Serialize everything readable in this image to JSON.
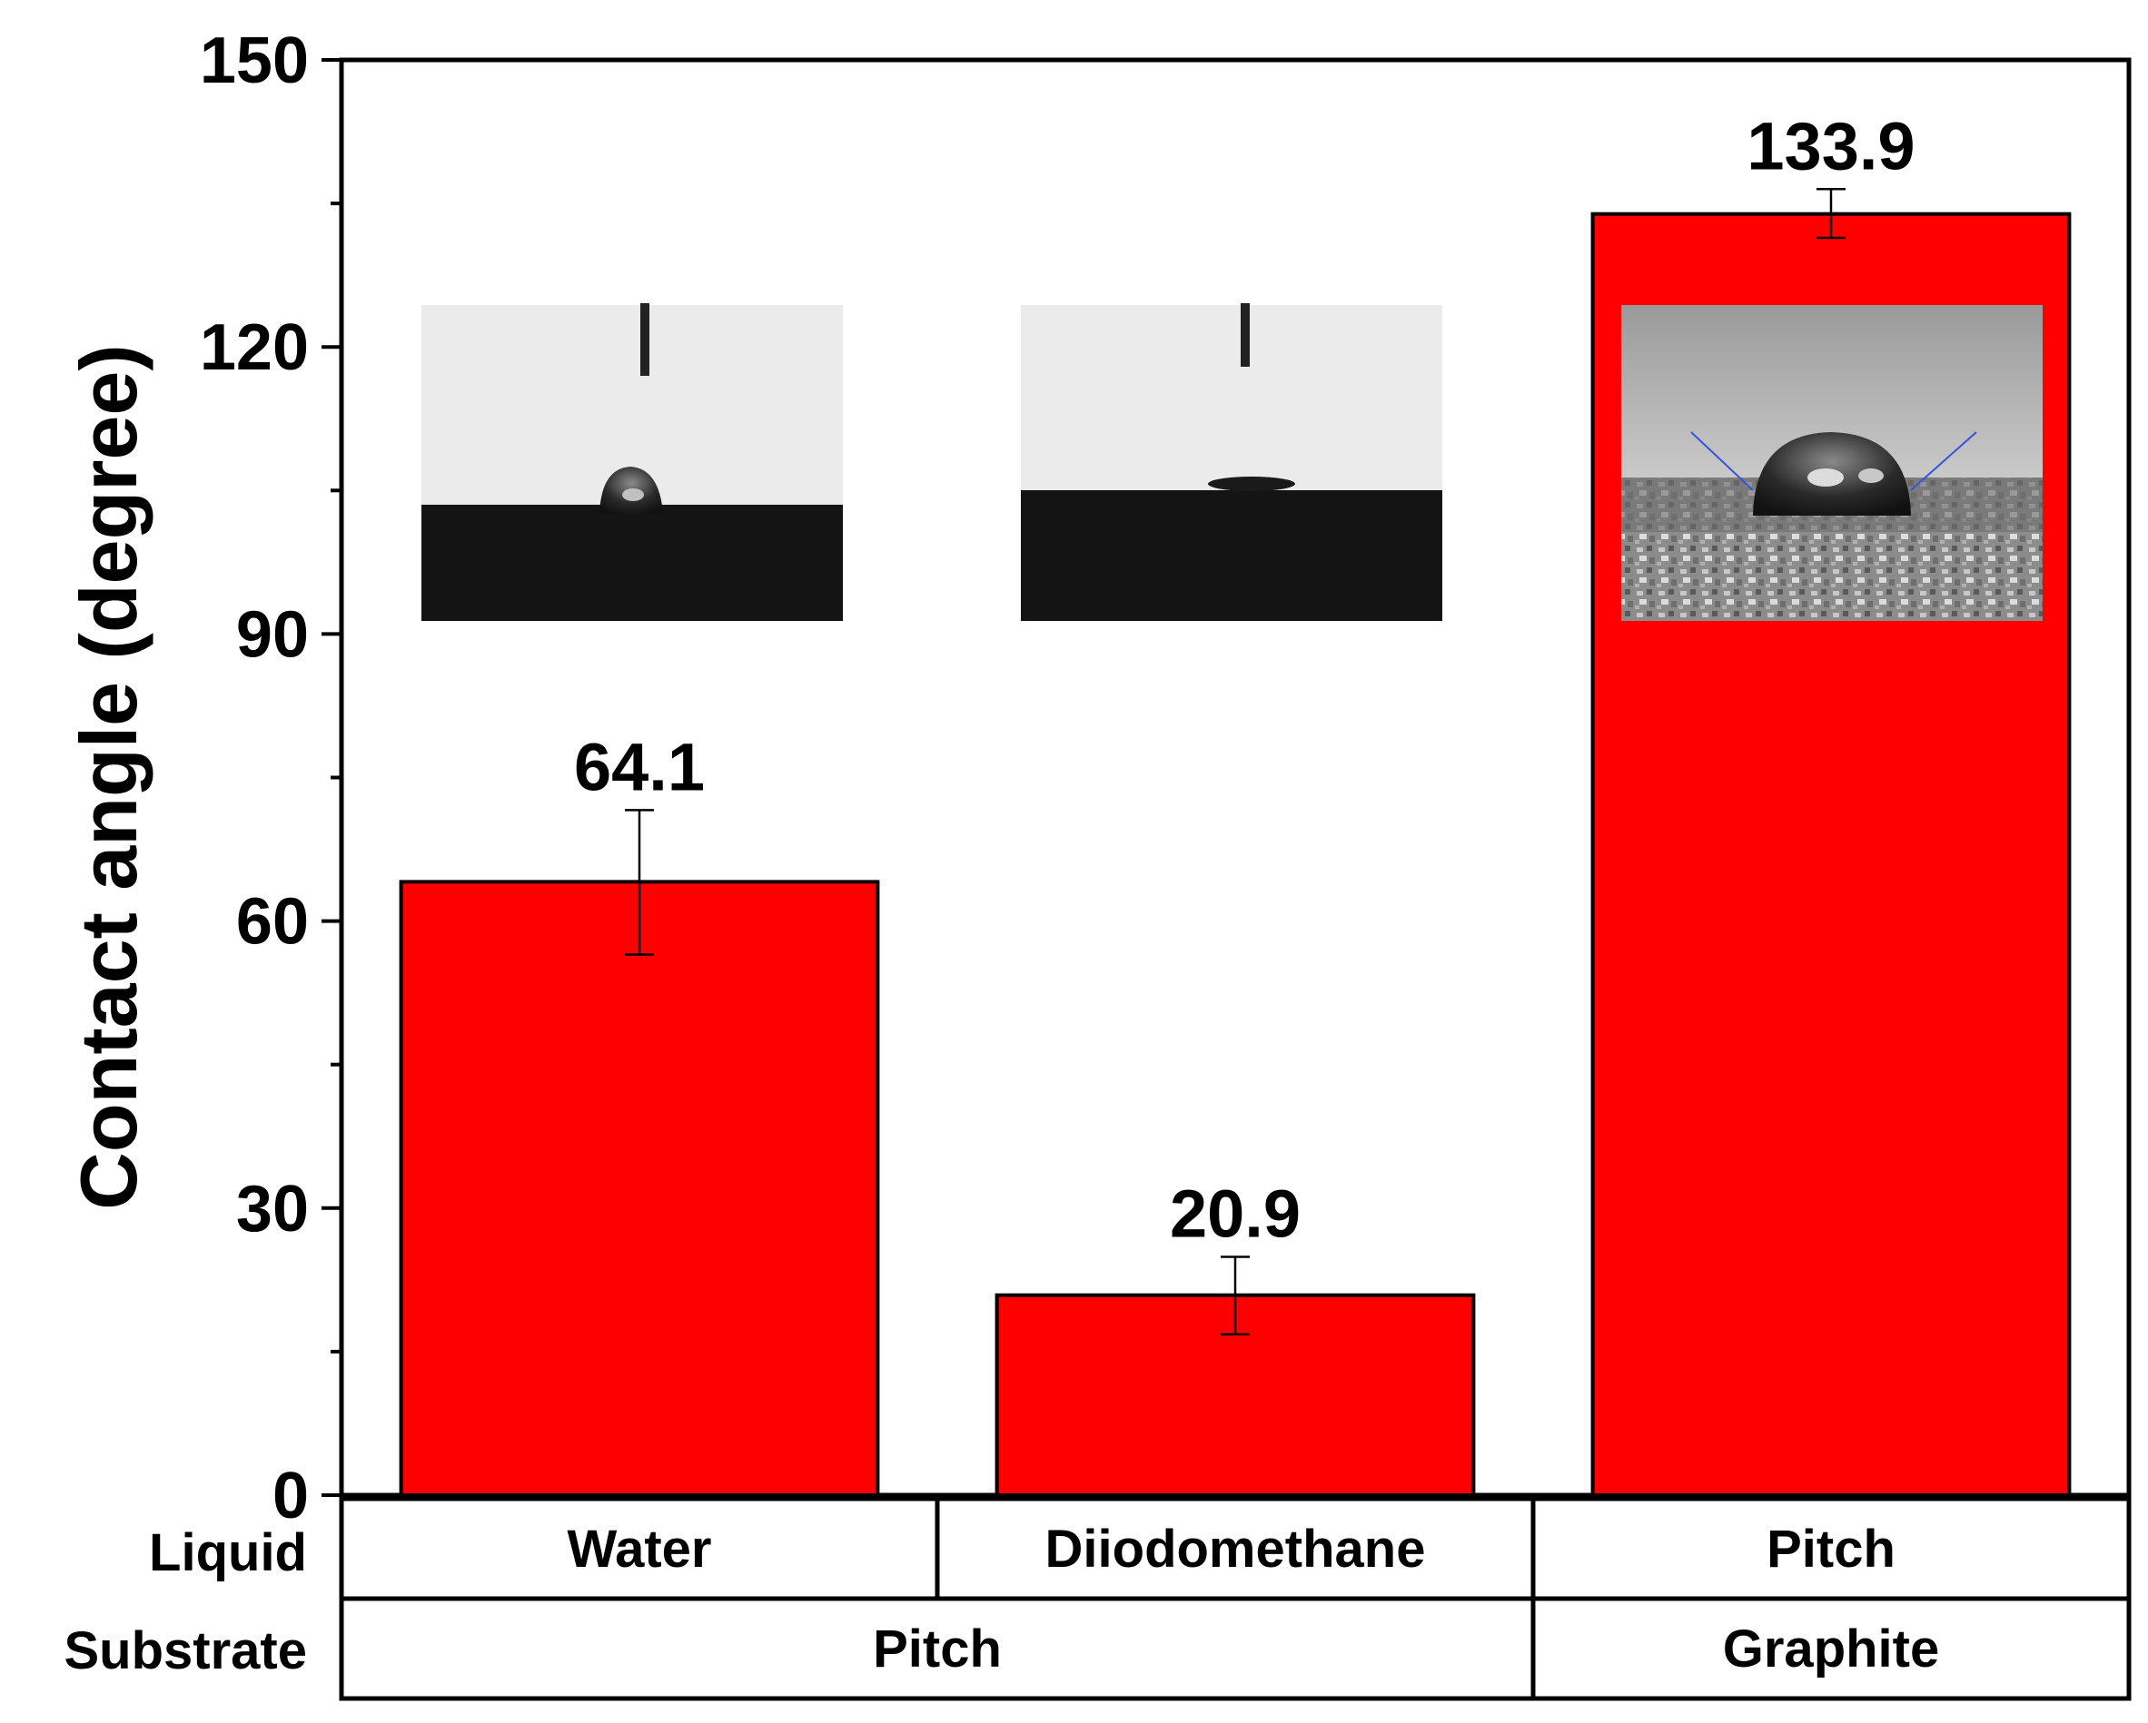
{
  "chart_data": {
    "type": "bar",
    "ylabel": "Contact angle (degree)",
    "ylim": [
      0,
      150
    ],
    "yticks": [
      0,
      30,
      60,
      90,
      120,
      150
    ],
    "categories": [
      "Water",
      "Diiodomethane",
      "Pitch"
    ],
    "values": [
      64.1,
      20.9,
      133.9
    ],
    "value_labels": [
      "64.1",
      "20.9",
      "133.9"
    ],
    "error_low": [
      56.5,
      16.8,
      131.4
    ],
    "error_high": [
      71.6,
      24.9,
      136.5
    ],
    "bar_color": "#ff0000",
    "table": {
      "row_labels": {
        "liquid": "Liquid",
        "substrate": "Substrate"
      },
      "liquid": [
        "Water",
        "Diiodomethane",
        "Pitch"
      ],
      "substrate": [
        {
          "label": "Pitch",
          "span": 2
        },
        {
          "label": "Graphite",
          "span": 1
        }
      ]
    },
    "insets": [
      "water-droplet-photo",
      "diiodomethane-droplet-photo",
      "pitch-on-graphite-droplet-photo"
    ]
  }
}
